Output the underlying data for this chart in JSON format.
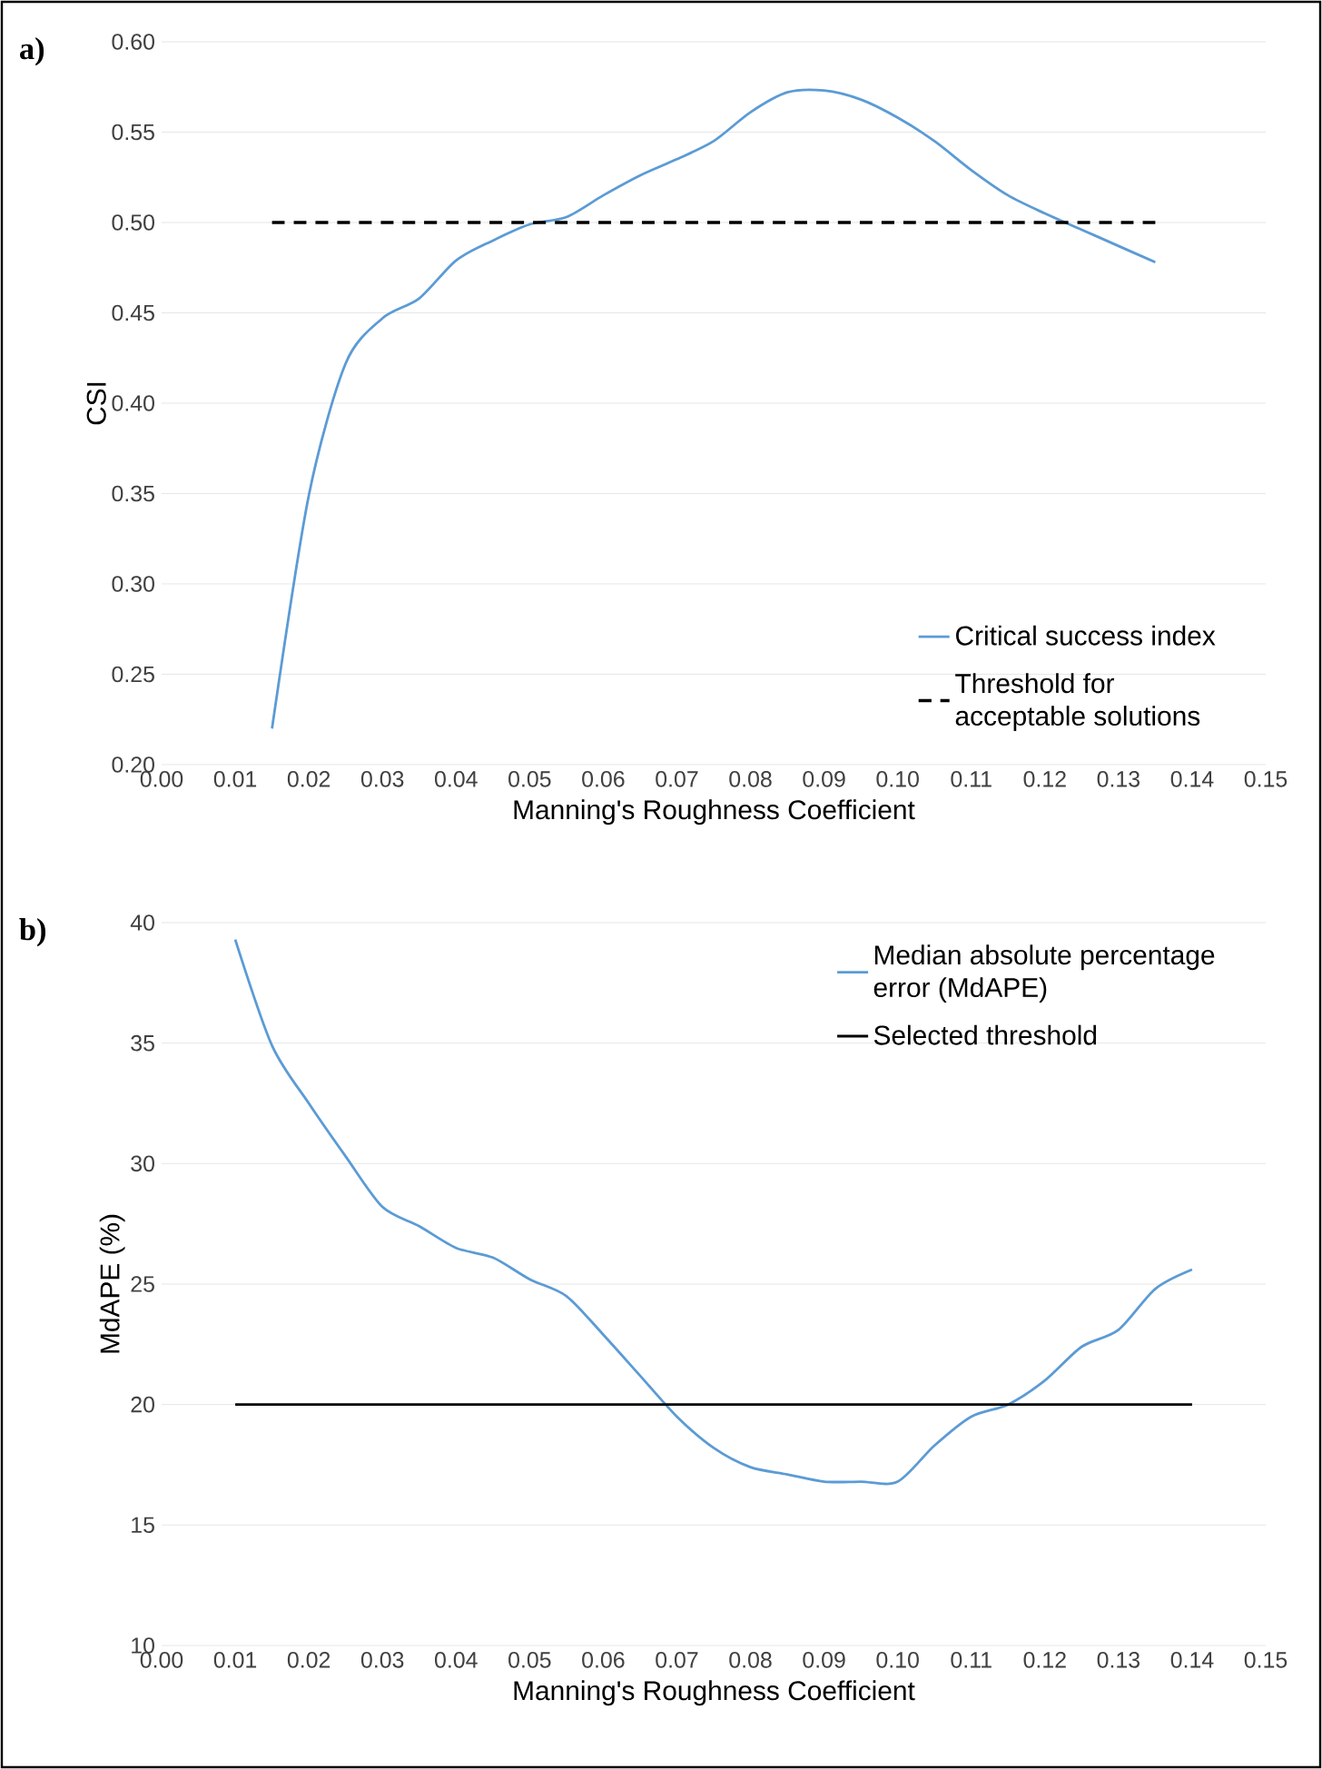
{
  "chart_data": [
    {
      "type": "line",
      "title": "a)",
      "xlabel": "Manning's Roughness Coefficient",
      "ylabel": "CSI",
      "grid": "y",
      "legend": "bottom right",
      "xlim": [
        0,
        0.15
      ],
      "ylim": [
        0.2,
        0.6
      ],
      "xticks": [
        {
          "value": 0,
          "label": "0.00"
        },
        {
          "value": 0.01,
          "label": "0.01"
        },
        {
          "value": 0.02,
          "label": "0.02"
        },
        {
          "value": 0.03,
          "label": "0.03"
        },
        {
          "value": 0.04,
          "label": "0.04"
        },
        {
          "value": 0.05,
          "label": "0.05"
        },
        {
          "value": 0.06,
          "label": "0.06"
        },
        {
          "value": 0.07,
          "label": "0.07"
        },
        {
          "value": 0.08,
          "label": "0.08"
        },
        {
          "value": 0.09,
          "label": "0.09"
        },
        {
          "value": 0.1,
          "label": "0.10"
        },
        {
          "value": 0.11,
          "label": "0.11"
        },
        {
          "value": 0.12,
          "label": "0.12"
        },
        {
          "value": 0.13,
          "label": "0.13"
        },
        {
          "value": 0.14,
          "label": "0.14"
        },
        {
          "value": 0.15,
          "label": "0.15"
        }
      ],
      "yticks": [
        {
          "value": 0.2,
          "label": "0.20"
        },
        {
          "value": 0.25,
          "label": "0.25"
        },
        {
          "value": 0.3,
          "label": "0.30"
        },
        {
          "value": 0.35,
          "label": "0.35"
        },
        {
          "value": 0.4,
          "label": "0.40"
        },
        {
          "value": 0.45,
          "label": "0.45"
        },
        {
          "value": 0.5,
          "label": "0.50"
        },
        {
          "value": 0.55,
          "label": "0.55"
        },
        {
          "value": 0.6,
          "label": "0.60"
        }
      ],
      "series": [
        {
          "name": "Critical success index",
          "color": "#5b9bd5",
          "line_style": "solid",
          "x": [
            0.015,
            0.02,
            0.025,
            0.03,
            0.035,
            0.04,
            0.045,
            0.05,
            0.055,
            0.06,
            0.065,
            0.07,
            0.075,
            0.08,
            0.085,
            0.09,
            0.095,
            0.1,
            0.105,
            0.11,
            0.115,
            0.12,
            0.125,
            0.13,
            0.135
          ],
          "values": [
            0.22,
            0.349,
            0.422,
            0.447,
            0.458,
            0.479,
            0.49,
            0.499,
            0.503,
            0.515,
            0.526,
            0.535,
            0.545,
            0.561,
            0.572,
            0.573,
            0.568,
            0.558,
            0.545,
            0.529,
            0.515,
            0.505,
            0.496,
            0.487,
            0.478
          ]
        },
        {
          "name": "Threshold for acceptable solutions",
          "color": "#000000",
          "line_style": "dashed",
          "x": [
            0.015,
            0.135
          ],
          "values": [
            0.5,
            0.5
          ]
        }
      ]
    },
    {
      "type": "line",
      "title": "b)",
      "xlabel": "Manning's Roughness Coefficient",
      "ylabel": "MdAPE (%)",
      "grid": "y",
      "legend": "top right",
      "xlim": [
        0,
        0.15
      ],
      "ylim": [
        10,
        40
      ],
      "xticks": [
        {
          "value": 0,
          "label": "0.00"
        },
        {
          "value": 0.01,
          "label": "0.01"
        },
        {
          "value": 0.02,
          "label": "0.02"
        },
        {
          "value": 0.03,
          "label": "0.03"
        },
        {
          "value": 0.04,
          "label": "0.04"
        },
        {
          "value": 0.05,
          "label": "0.05"
        },
        {
          "value": 0.06,
          "label": "0.06"
        },
        {
          "value": 0.07,
          "label": "0.07"
        },
        {
          "value": 0.08,
          "label": "0.08"
        },
        {
          "value": 0.09,
          "label": "0.09"
        },
        {
          "value": 0.1,
          "label": "0.10"
        },
        {
          "value": 0.11,
          "label": "0.11"
        },
        {
          "value": 0.12,
          "label": "0.12"
        },
        {
          "value": 0.13,
          "label": "0.13"
        },
        {
          "value": 0.14,
          "label": "0.14"
        },
        {
          "value": 0.15,
          "label": "0.15"
        }
      ],
      "yticks": [
        10,
        15,
        20,
        25,
        30,
        35,
        40
      ],
      "series": [
        {
          "name": "Median absolute percentage error (MdAPE)",
          "color": "#5b9bd5",
          "line_style": "solid",
          "x": [
            0.01,
            0.015,
            0.02,
            0.025,
            0.03,
            0.035,
            0.04,
            0.045,
            0.05,
            0.055,
            0.06,
            0.065,
            0.07,
            0.075,
            0.08,
            0.085,
            0.09,
            0.095,
            0.1,
            0.105,
            0.11,
            0.115,
            0.12,
            0.125,
            0.13,
            0.135,
            0.14
          ],
          "values": [
            39.3,
            34.9,
            32.5,
            30.3,
            28.2,
            27.4,
            26.5,
            26.1,
            25.2,
            24.5,
            22.9,
            21.2,
            19.5,
            18.2,
            17.4,
            17.1,
            16.8,
            16.8,
            16.8,
            18.3,
            19.5,
            20.0,
            21.0,
            22.4,
            23.1,
            24.8,
            25.6
          ]
        },
        {
          "name": "Selected threshold",
          "color": "#000000",
          "line_style": "solid",
          "x": [
            0.01,
            0.14
          ],
          "values": [
            20,
            20
          ]
        }
      ]
    }
  ]
}
